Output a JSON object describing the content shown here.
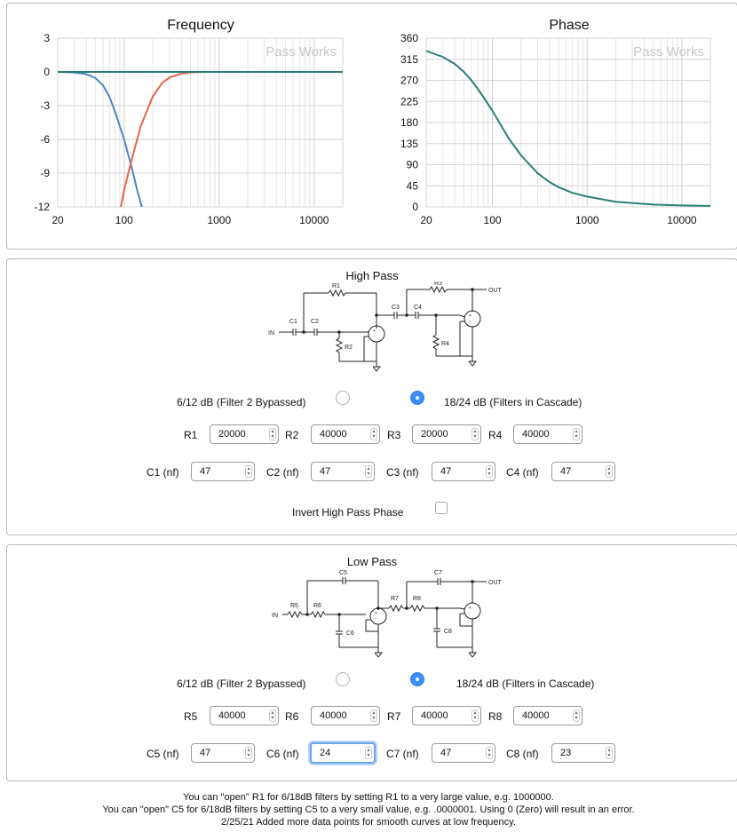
{
  "charts_panel": {
    "freq_chart": {
      "watermark": "Pass Works"
    },
    "phase_chart": {
      "watermark": "Pass Works"
    }
  },
  "chart_data": [
    {
      "type": "line",
      "title": "Frequency",
      "x_scale": "log",
      "xlim": [
        20,
        20000
      ],
      "ylim": [
        -12,
        3
      ],
      "x_ticks": [
        "20",
        "100",
        "1000",
        "10000"
      ],
      "y_ticks": [
        "3",
        "0",
        "-3",
        "-6",
        "-9",
        "-12"
      ],
      "grid": true,
      "series": [
        {
          "color": "#4a86c0",
          "x": [
            20,
            30,
            40,
            50,
            60,
            70,
            80,
            100,
            120,
            140,
            160
          ],
          "y": [
            0,
            -0.05,
            -0.2,
            -0.55,
            -1.2,
            -2.2,
            -3.5,
            -6.0,
            -8.5,
            -10.8,
            -12.5
          ]
        },
        {
          "color": "#e7654b",
          "x": [
            90,
            100,
            120,
            150,
            200,
            250,
            300,
            400,
            500,
            700,
            1000,
            2000,
            5000,
            20000
          ],
          "y": [
            -12.5,
            -10.5,
            -7.8,
            -4.8,
            -2.2,
            -1.0,
            -0.5,
            -0.15,
            -0.05,
            0,
            0,
            0,
            0,
            0
          ]
        },
        {
          "color": "#2a7f77",
          "x": [
            20,
            100,
            1000,
            20000
          ],
          "y": [
            0,
            0,
            0,
            0
          ]
        }
      ]
    },
    {
      "type": "line",
      "title": "Phase",
      "x_scale": "log",
      "xlim": [
        20,
        20000
      ],
      "ylim": [
        0,
        360
      ],
      "x_ticks": [
        "20",
        "100",
        "1000",
        "10000"
      ],
      "y_ticks": [
        "360",
        "315",
        "270",
        "225",
        "180",
        "135",
        "90",
        "45",
        "0"
      ],
      "grid": true,
      "series": [
        {
          "color": "#2a7f77",
          "x": [
            20,
            30,
            40,
            50,
            60,
            70,
            80,
            100,
            120,
            150,
            200,
            300,
            400,
            500,
            700,
            1000,
            2000,
            5000,
            10000,
            20000
          ],
          "y": [
            333,
            320,
            305,
            288,
            270,
            252,
            235,
            205,
            178,
            145,
            110,
            72,
            53,
            42,
            30,
            22,
            11,
            5,
            3,
            2
          ]
        }
      ]
    }
  ],
  "high_pass": {
    "title": "High Pass",
    "option_a_label": "6/12 dB (Filter 2 Bypassed)",
    "option_b_label": "18/24 dB (Filters in Cascade)",
    "selected": "option_b",
    "r_fields": [
      {
        "label": "R1",
        "value": "20000"
      },
      {
        "label": "R2",
        "value": "40000"
      },
      {
        "label": "R3",
        "value": "20000"
      },
      {
        "label": "R4",
        "value": "40000"
      }
    ],
    "c_fields": [
      {
        "label": "C1 (nf)",
        "value": "47"
      },
      {
        "label": "C2 (nf)",
        "value": "47"
      },
      {
        "label": "C3 (nf)",
        "value": "47"
      },
      {
        "label": "C4 (nf)",
        "value": "47"
      }
    ],
    "invert_label": "Invert High Pass Phase",
    "invert_checked": false,
    "schematic_labels": {
      "r1": "R1",
      "r2": "R2",
      "r3": "R3",
      "r4": "R4",
      "c1": "C1",
      "c2": "C2",
      "c3": "C3",
      "c4": "C4",
      "in": "IN",
      "out": "OUT"
    }
  },
  "low_pass": {
    "title": "Low Pass",
    "option_a_label": "6/12 dB (Filter 2 Bypassed)",
    "option_b_label": "18/24 dB (Filters in Cascade)",
    "selected": "option_b",
    "r_fields": [
      {
        "label": "R5",
        "value": "40000"
      },
      {
        "label": "R6",
        "value": "40000"
      },
      {
        "label": "R7",
        "value": "40000"
      },
      {
        "label": "R8",
        "value": "40000"
      }
    ],
    "c_fields": [
      {
        "label": "C5 (nf)",
        "value": "47"
      },
      {
        "label": "C6 (nf)",
        "value": "24"
      },
      {
        "label": "C7 (nf)",
        "value": "47"
      },
      {
        "label": "C8 (nf)",
        "value": "23"
      }
    ],
    "schematic_labels": {
      "r5": "R5",
      "r6": "R6",
      "r7": "R7",
      "r8": "R8",
      "c5": "C5",
      "c6": "C6",
      "c7": "C7",
      "c8": "C8",
      "in": "IN",
      "out": "OUT"
    }
  },
  "footer": {
    "line1": "You can \"open\" R1 for 6/18dB filters by setting R1 to a very large value, e.g. 1000000.",
    "line2": "You can \"open\" C5 for 6/18dB filters by setting C5 to a very small value, e.g. .0000001. Using 0 (Zero) will result in an error.",
    "line3": "2/25/21 Added more data points for smooth curves at low frequency."
  }
}
